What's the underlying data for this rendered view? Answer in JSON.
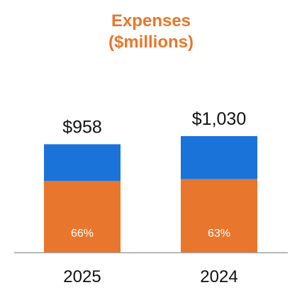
{
  "chart_data": {
    "type": "bar",
    "stacked": true,
    "title": "Expenses",
    "subtitle": "($millions)",
    "categories": [
      "2025",
      "2024"
    ],
    "totals": [
      958,
      1030
    ],
    "total_labels": [
      "$958",
      "$1,030"
    ],
    "series": [
      {
        "color": "#E8762C",
        "share": [
          0.66,
          0.63
        ],
        "labels": [
          "66%",
          "63%"
        ]
      },
      {
        "color": "#1A73D8",
        "share": [
          0.34,
          0.37
        ],
        "labels": []
      }
    ],
    "ylim": [
      0,
      1030
    ],
    "grid": false,
    "legend": "none"
  },
  "colors": {
    "title": "#E8762C",
    "axis_line": "#9E9E9E",
    "text": "#111111",
    "segment_label": "#FFFFFF"
  }
}
